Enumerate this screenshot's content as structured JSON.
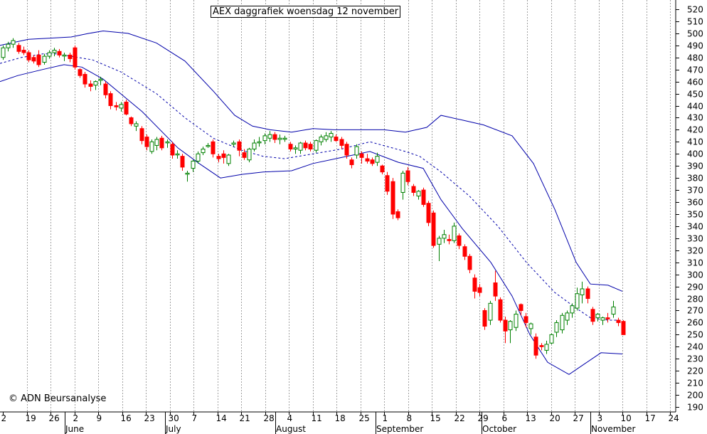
{
  "chart_data": {
    "type": "candlestick",
    "title": "AEX daggrafiek woensdag 12 november",
    "credit": "© ADN Beursanalyse",
    "ylim": [
      190,
      520
    ],
    "y_ticks": [
      190,
      200,
      210,
      220,
      230,
      240,
      250,
      260,
      270,
      280,
      290,
      300,
      310,
      320,
      330,
      340,
      350,
      360,
      370,
      380,
      390,
      400,
      410,
      420,
      430,
      440,
      450,
      460,
      470,
      480,
      490,
      500,
      510,
      520
    ],
    "day_labels": [
      "2",
      "19",
      "26",
      "2",
      "9",
      "16",
      "23",
      "30",
      "7",
      "14",
      "21",
      "28",
      "4",
      "11",
      "18",
      "25",
      "1",
      "8",
      "15",
      "22",
      "29",
      "6",
      "13",
      "20",
      "27",
      "3",
      "10",
      "17",
      "24"
    ],
    "month_labels": [
      "June",
      "July",
      "August",
      "September",
      "October",
      "November"
    ],
    "grid": "vertical-dotted",
    "colors": {
      "up": "#008000",
      "down": "#ff0000",
      "band": "#0000aa"
    },
    "candles": [
      {
        "o": 480,
        "h": 490,
        "l": 478,
        "c": 488
      },
      {
        "o": 488,
        "h": 493,
        "l": 485,
        "c": 491
      },
      {
        "o": 491,
        "h": 496,
        "l": 488,
        "c": 494
      },
      {
        "o": 490,
        "h": 492,
        "l": 483,
        "c": 485
      },
      {
        "o": 486,
        "h": 489,
        "l": 482,
        "c": 484
      },
      {
        "o": 484,
        "h": 486,
        "l": 476,
        "c": 478
      },
      {
        "o": 480,
        "h": 482,
        "l": 475,
        "c": 477
      },
      {
        "o": 482,
        "h": 486,
        "l": 472,
        "c": 474
      },
      {
        "o": 476,
        "h": 483,
        "l": 474,
        "c": 481
      },
      {
        "o": 481,
        "h": 486,
        "l": 479,
        "c": 484
      },
      {
        "o": 484,
        "h": 488,
        "l": 481,
        "c": 486
      },
      {
        "o": 485,
        "h": 487,
        "l": 480,
        "c": 482
      },
      {
        "o": 482,
        "h": 484,
        "l": 477,
        "c": 482
      },
      {
        "o": 482,
        "h": 484,
        "l": 476,
        "c": 479
      },
      {
        "o": 488,
        "h": 490,
        "l": 470,
        "c": 472
      },
      {
        "o": 470,
        "h": 471,
        "l": 463,
        "c": 465
      },
      {
        "o": 466,
        "h": 468,
        "l": 455,
        "c": 458
      },
      {
        "o": 458,
        "h": 461,
        "l": 452,
        "c": 456
      },
      {
        "o": 457,
        "h": 461,
        "l": 453,
        "c": 460
      },
      {
        "o": 461,
        "h": 464,
        "l": 457,
        "c": 462
      },
      {
        "o": 458,
        "h": 460,
        "l": 446,
        "c": 449
      },
      {
        "o": 450,
        "h": 452,
        "l": 437,
        "c": 440
      },
      {
        "o": 440,
        "h": 443,
        "l": 436,
        "c": 439
      },
      {
        "o": 438,
        "h": 443,
        "l": 435,
        "c": 441
      },
      {
        "o": 443,
        "h": 445,
        "l": 432,
        "c": 433
      },
      {
        "o": 430,
        "h": 431,
        "l": 423,
        "c": 425
      },
      {
        "o": 423,
        "h": 427,
        "l": 419,
        "c": 425
      },
      {
        "o": 421,
        "h": 423,
        "l": 408,
        "c": 411
      },
      {
        "o": 414,
        "h": 416,
        "l": 403,
        "c": 406
      },
      {
        "o": 402,
        "h": 412,
        "l": 400,
        "c": 410
      },
      {
        "o": 407,
        "h": 414,
        "l": 403,
        "c": 412
      },
      {
        "o": 413,
        "h": 415,
        "l": 403,
        "c": 405
      },
      {
        "o": 410,
        "h": 412,
        "l": 405,
        "c": 410
      },
      {
        "o": 408,
        "h": 410,
        "l": 396,
        "c": 399
      },
      {
        "o": 400,
        "h": 403,
        "l": 396,
        "c": 400
      },
      {
        "o": 398,
        "h": 400,
        "l": 386,
        "c": 389
      },
      {
        "o": 384,
        "h": 386,
        "l": 377,
        "c": 384
      },
      {
        "o": 388,
        "h": 395,
        "l": 385,
        "c": 394
      },
      {
        "o": 394,
        "h": 402,
        "l": 392,
        "c": 400
      },
      {
        "o": 401,
        "h": 406,
        "l": 399,
        "c": 404
      },
      {
        "o": 407,
        "h": 409,
        "l": 405,
        "c": 407
      },
      {
        "o": 410,
        "h": 412,
        "l": 397,
        "c": 400
      },
      {
        "o": 398,
        "h": 400,
        "l": 393,
        "c": 396
      },
      {
        "o": 400,
        "h": 403,
        "l": 392,
        "c": 397
      },
      {
        "o": 392,
        "h": 400,
        "l": 390,
        "c": 399
      },
      {
        "o": 408,
        "h": 411,
        "l": 406,
        "c": 409
      },
      {
        "o": 410,
        "h": 412,
        "l": 398,
        "c": 403
      },
      {
        "o": 401,
        "h": 404,
        "l": 395,
        "c": 397
      },
      {
        "o": 395,
        "h": 405,
        "l": 393,
        "c": 404
      },
      {
        "o": 404,
        "h": 412,
        "l": 402,
        "c": 409
      },
      {
        "o": 410,
        "h": 414,
        "l": 406,
        "c": 410
      },
      {
        "o": 411,
        "h": 417,
        "l": 408,
        "c": 415
      },
      {
        "o": 413,
        "h": 419,
        "l": 410,
        "c": 416
      },
      {
        "o": 416,
        "h": 418,
        "l": 409,
        "c": 412
      },
      {
        "o": 412,
        "h": 416,
        "l": 408,
        "c": 413
      },
      {
        "o": 413,
        "h": 415,
        "l": 410,
        "c": 413
      },
      {
        "o": 408,
        "h": 410,
        "l": 402,
        "c": 404
      },
      {
        "o": 404,
        "h": 407,
        "l": 400,
        "c": 405
      },
      {
        "o": 403,
        "h": 410,
        "l": 400,
        "c": 409
      },
      {
        "o": 409,
        "h": 411,
        "l": 403,
        "c": 405
      },
      {
        "o": 408,
        "h": 410,
        "l": 402,
        "c": 404
      },
      {
        "o": 403,
        "h": 412,
        "l": 401,
        "c": 411
      },
      {
        "o": 410,
        "h": 416,
        "l": 407,
        "c": 414
      },
      {
        "o": 412,
        "h": 418,
        "l": 410,
        "c": 415
      },
      {
        "o": 414,
        "h": 419,
        "l": 410,
        "c": 417
      },
      {
        "o": 414,
        "h": 416,
        "l": 410,
        "c": 411
      },
      {
        "o": 412,
        "h": 414,
        "l": 404,
        "c": 407
      },
      {
        "o": 408,
        "h": 410,
        "l": 396,
        "c": 399
      },
      {
        "o": 395,
        "h": 397,
        "l": 388,
        "c": 391
      },
      {
        "o": 399,
        "h": 408,
        "l": 396,
        "c": 406
      },
      {
        "o": 400,
        "h": 402,
        "l": 392,
        "c": 397
      },
      {
        "o": 396,
        "h": 400,
        "l": 392,
        "c": 394
      },
      {
        "o": 395,
        "h": 397,
        "l": 390,
        "c": 392
      },
      {
        "o": 393,
        "h": 401,
        "l": 390,
        "c": 398
      },
      {
        "o": 390,
        "h": 391,
        "l": 383,
        "c": 385
      },
      {
        "o": 382,
        "h": 385,
        "l": 366,
        "c": 369
      },
      {
        "o": 377,
        "h": 380,
        "l": 346,
        "c": 350
      },
      {
        "o": 352,
        "h": 354,
        "l": 345,
        "c": 347
      },
      {
        "o": 368,
        "h": 386,
        "l": 362,
        "c": 384
      },
      {
        "o": 386,
        "h": 389,
        "l": 374,
        "c": 377
      },
      {
        "o": 373,
        "h": 375,
        "l": 365,
        "c": 368
      },
      {
        "o": 365,
        "h": 370,
        "l": 362,
        "c": 369
      },
      {
        "o": 370,
        "h": 372,
        "l": 356,
        "c": 358
      },
      {
        "o": 359,
        "h": 361,
        "l": 340,
        "c": 343
      },
      {
        "o": 351,
        "h": 353,
        "l": 322,
        "c": 324
      },
      {
        "o": 325,
        "h": 332,
        "l": 311,
        "c": 330
      },
      {
        "o": 330,
        "h": 337,
        "l": 326,
        "c": 333
      },
      {
        "o": 329,
        "h": 333,
        "l": 325,
        "c": 328
      },
      {
        "o": 328,
        "h": 343,
        "l": 326,
        "c": 340
      },
      {
        "o": 332,
        "h": 334,
        "l": 321,
        "c": 324
      },
      {
        "o": 323,
        "h": 325,
        "l": 312,
        "c": 315
      },
      {
        "o": 315,
        "h": 317,
        "l": 301,
        "c": 304
      },
      {
        "o": 297,
        "h": 300,
        "l": 280,
        "c": 286
      },
      {
        "o": 289,
        "h": 292,
        "l": 282,
        "c": 285
      },
      {
        "o": 270,
        "h": 272,
        "l": 254,
        "c": 257
      },
      {
        "o": 262,
        "h": 278,
        "l": 258,
        "c": 276
      },
      {
        "o": 293,
        "h": 303,
        "l": 278,
        "c": 282
      },
      {
        "o": 279,
        "h": 281,
        "l": 260,
        "c": 262
      },
      {
        "o": 262,
        "h": 265,
        "l": 243,
        "c": 253
      },
      {
        "o": 254,
        "h": 262,
        "l": 243,
        "c": 261
      },
      {
        "o": 256,
        "h": 270,
        "l": 253,
        "c": 267
      },
      {
        "o": 275,
        "h": 276,
        "l": 266,
        "c": 270
      },
      {
        "o": 265,
        "h": 268,
        "l": 256,
        "c": 260
      },
      {
        "o": 255,
        "h": 260,
        "l": 250,
        "c": 259
      },
      {
        "o": 248,
        "h": 251,
        "l": 230,
        "c": 233
      },
      {
        "o": 241,
        "h": 243,
        "l": 237,
        "c": 240
      },
      {
        "o": 237,
        "h": 245,
        "l": 234,
        "c": 242
      },
      {
        "o": 243,
        "h": 251,
        "l": 242,
        "c": 250
      },
      {
        "o": 252,
        "h": 262,
        "l": 248,
        "c": 260
      },
      {
        "o": 254,
        "h": 268,
        "l": 251,
        "c": 266
      },
      {
        "o": 262,
        "h": 270,
        "l": 258,
        "c": 268
      },
      {
        "o": 268,
        "h": 276,
        "l": 264,
        "c": 274
      },
      {
        "o": 272,
        "h": 289,
        "l": 270,
        "c": 284
      },
      {
        "o": 283,
        "h": 294,
        "l": 276,
        "c": 288
      },
      {
        "o": 288,
        "h": 290,
        "l": 276,
        "c": 280
      },
      {
        "o": 271,
        "h": 273,
        "l": 258,
        "c": 261
      },
      {
        "o": 264,
        "h": 268,
        "l": 261,
        "c": 267
      },
      {
        "o": 262,
        "h": 265,
        "l": 258,
        "c": 264
      },
      {
        "o": 264,
        "h": 268,
        "l": 260,
        "c": 263
      },
      {
        "o": 267,
        "h": 278,
        "l": 264,
        "c": 273
      },
      {
        "o": 262,
        "h": 264,
        "l": 257,
        "c": 260
      },
      {
        "o": 261,
        "h": 262,
        "l": 250,
        "c": 250
      }
    ],
    "bands": {
      "upper": [
        [
          0,
          490
        ],
        [
          40,
          495
        ],
        [
          100,
          497
        ],
        [
          125,
          500
        ],
        [
          145,
          502
        ],
        [
          180,
          500
        ],
        [
          220,
          492
        ],
        [
          260,
          477
        ],
        [
          300,
          452
        ],
        [
          330,
          432
        ],
        [
          355,
          423
        ],
        [
          380,
          420
        ],
        [
          410,
          418
        ],
        [
          440,
          421
        ],
        [
          470,
          420
        ],
        [
          510,
          420
        ],
        [
          540,
          420
        ],
        [
          570,
          418
        ],
        [
          600,
          422
        ],
        [
          620,
          432
        ],
        [
          650,
          428
        ],
        [
          680,
          424
        ],
        [
          720,
          415
        ],
        [
          750,
          392
        ],
        [
          780,
          354
        ],
        [
          810,
          310
        ],
        [
          830,
          292
        ],
        [
          855,
          291
        ],
        [
          875,
          286
        ]
      ],
      "middle": [
        [
          0,
          475
        ],
        [
          30,
          480
        ],
        [
          60,
          483
        ],
        [
          80,
          483
        ],
        [
          100,
          481
        ],
        [
          130,
          478
        ],
        [
          170,
          468
        ],
        [
          220,
          450
        ],
        [
          260,
          430
        ],
        [
          300,
          413
        ],
        [
          340,
          403
        ],
        [
          370,
          398
        ],
        [
          400,
          396
        ],
        [
          440,
          400
        ],
        [
          480,
          404
        ],
        [
          520,
          410
        ],
        [
          545,
          406
        ],
        [
          570,
          402
        ],
        [
          590,
          398
        ],
        [
          620,
          385
        ],
        [
          660,
          365
        ],
        [
          700,
          340
        ],
        [
          740,
          310
        ],
        [
          780,
          285
        ],
        [
          810,
          272
        ],
        [
          830,
          264
        ],
        [
          855,
          262
        ],
        [
          875,
          262
        ]
      ],
      "lower": [
        [
          0,
          460
        ],
        [
          25,
          465
        ],
        [
          60,
          470
        ],
        [
          90,
          474
        ],
        [
          115,
          472
        ],
        [
          145,
          462
        ],
        [
          200,
          435
        ],
        [
          250,
          405
        ],
        [
          280,
          392
        ],
        [
          310,
          380
        ],
        [
          340,
          383
        ],
        [
          370,
          385
        ],
        [
          410,
          386
        ],
        [
          440,
          392
        ],
        [
          480,
          397
        ],
        [
          520,
          402
        ],
        [
          560,
          393
        ],
        [
          595,
          388
        ],
        [
          620,
          362
        ],
        [
          650,
          338
        ],
        [
          690,
          310
        ],
        [
          720,
          282
        ],
        [
          745,
          250
        ],
        [
          770,
          227
        ],
        [
          800,
          217
        ],
        [
          820,
          225
        ],
        [
          845,
          235
        ],
        [
          875,
          234
        ]
      ]
    }
  }
}
